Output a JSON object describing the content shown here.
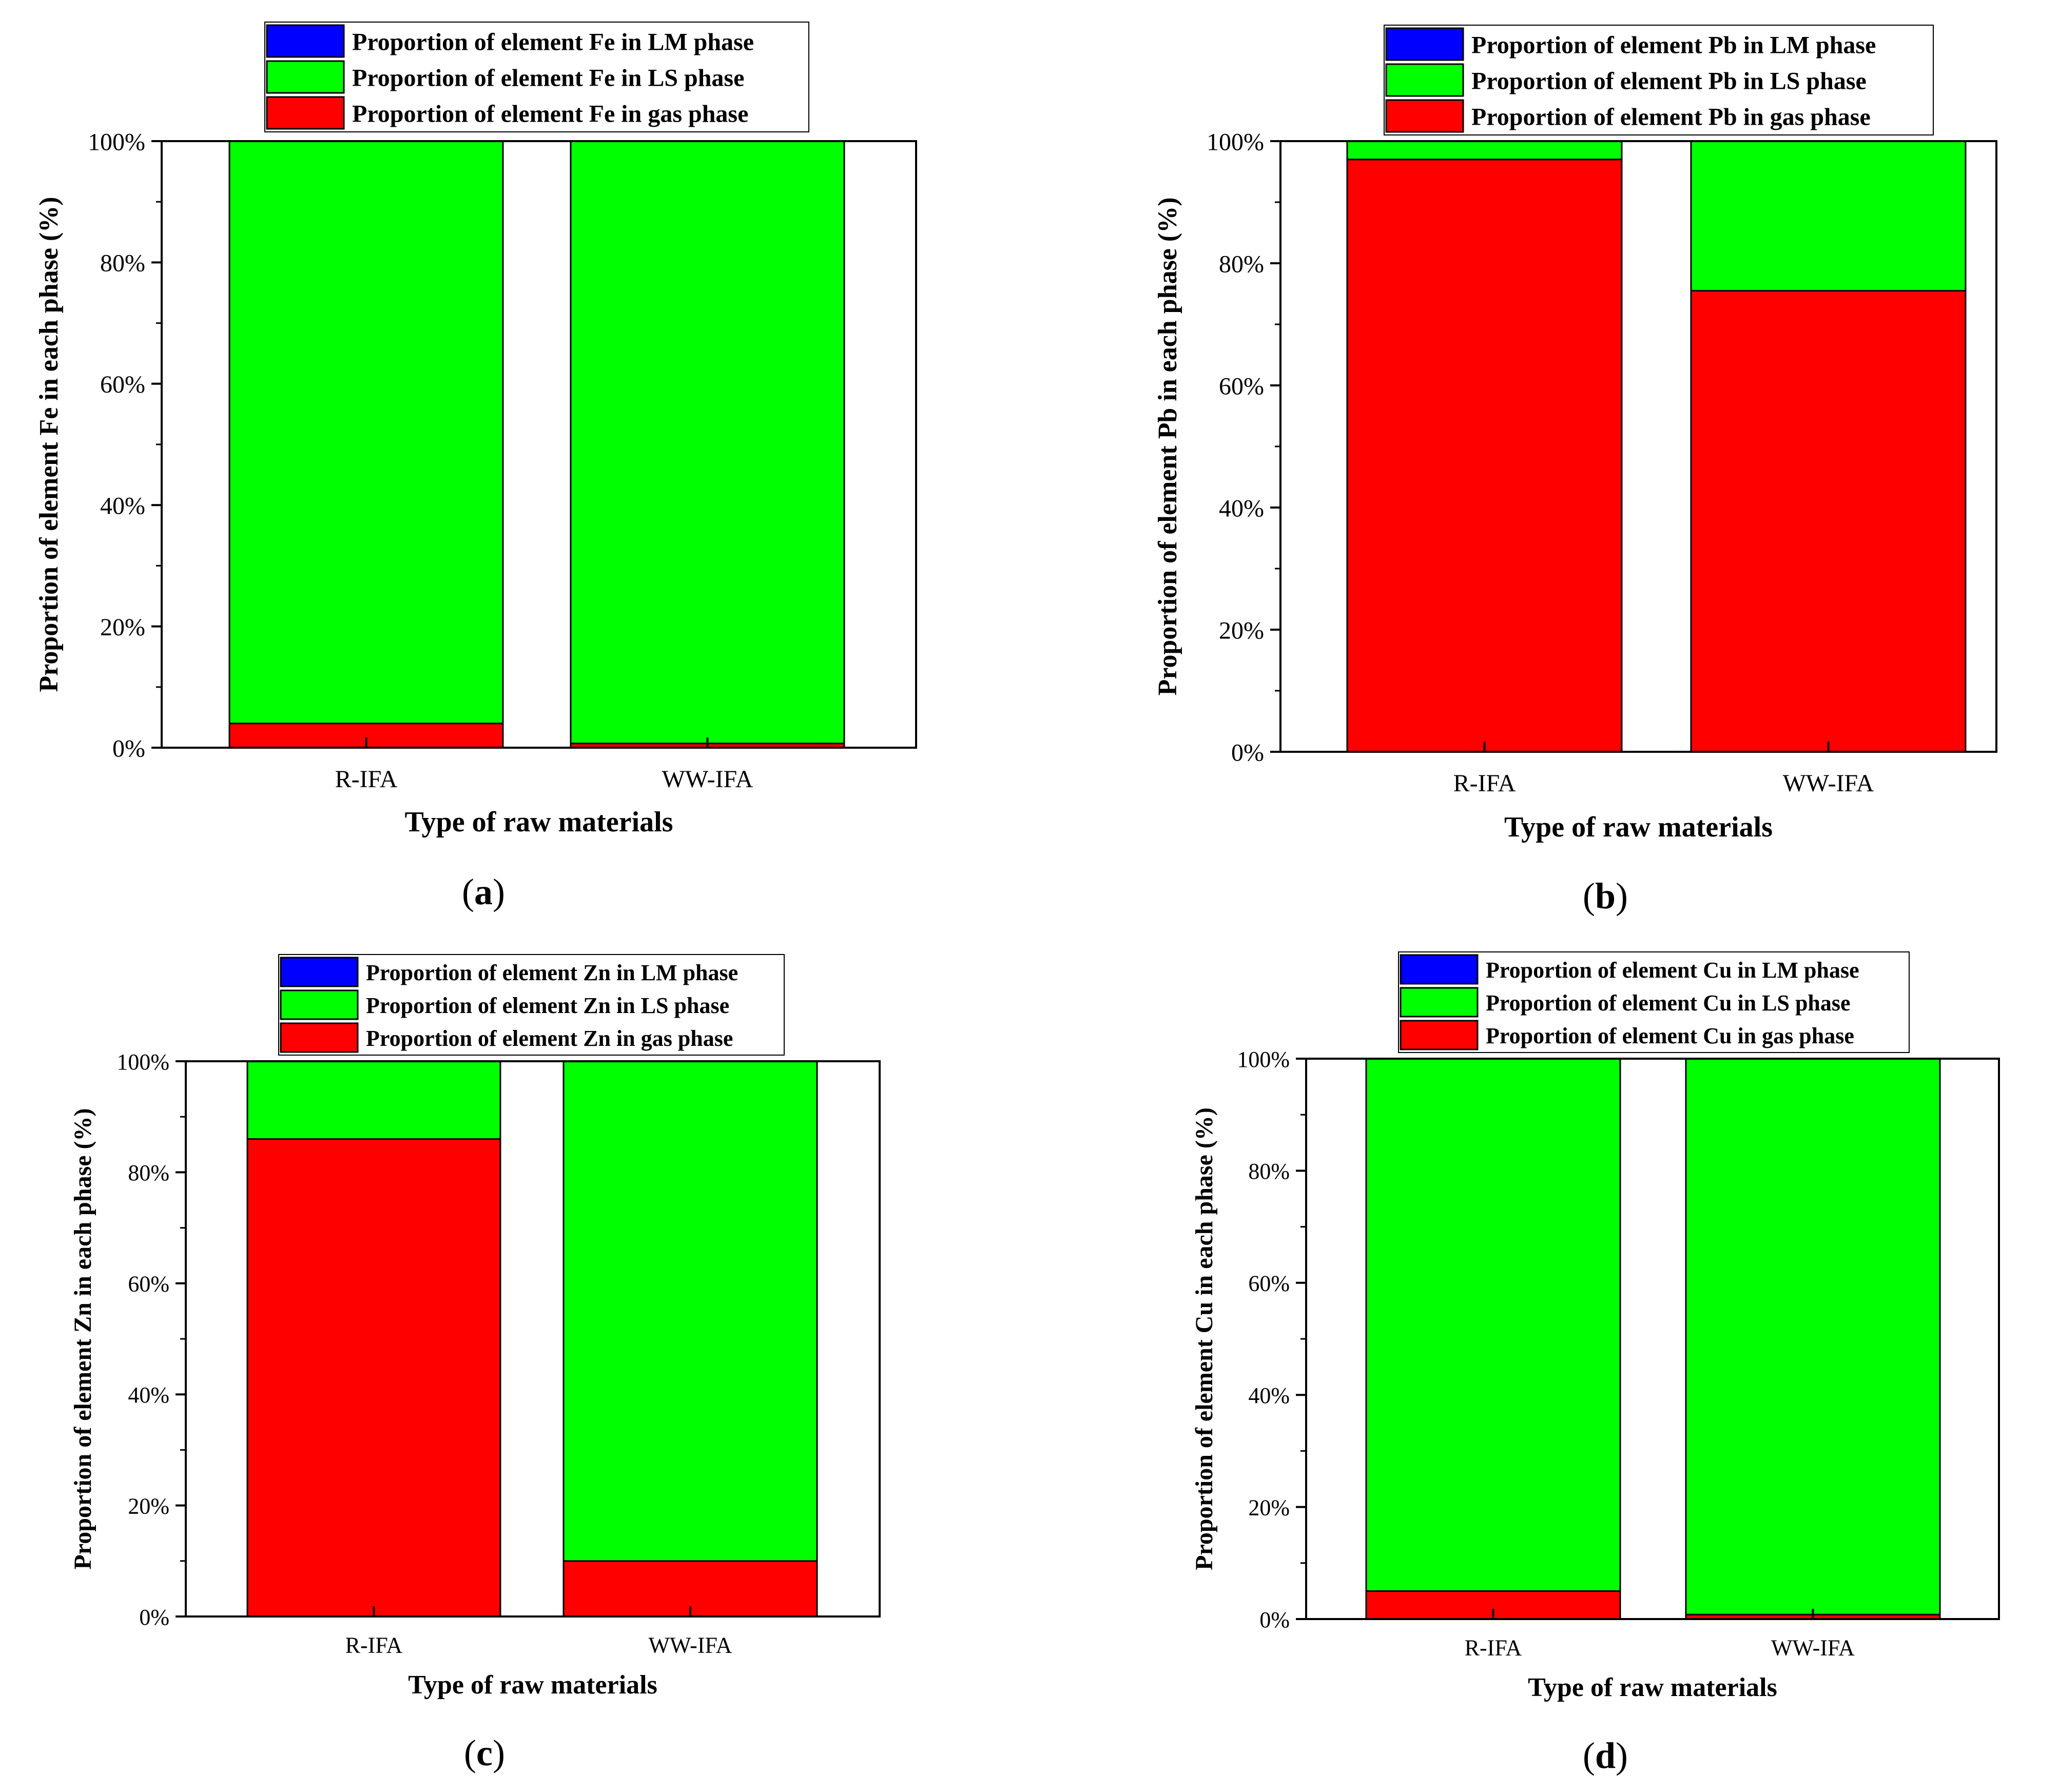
{
  "colors": {
    "lm": "#0000ff",
    "ls": "#00ff00",
    "gas": "#ff0000",
    "axis": "#000000",
    "background": "#ffffff"
  },
  "chart_data": [
    {
      "type": "bar",
      "stacked": true,
      "panel": "a",
      "panel_label": "a",
      "element": "Fe",
      "categories": [
        "R-IFA",
        "WW-IFA"
      ],
      "series": [
        {
          "key": "gas",
          "name": "Proportion of element Fe in gas phase",
          "values": [
            4,
            0.7
          ]
        },
        {
          "key": "ls",
          "name": "Proportion of element Fe in LS phase",
          "values": [
            96,
            99.3
          ]
        },
        {
          "key": "lm",
          "name": "Proportion of element Fe in LM phase",
          "values": [
            0,
            0
          ]
        }
      ],
      "legend_order": [
        "lm",
        "ls",
        "gas"
      ],
      "xlabel": "Type of raw materials",
      "ylabel": "Proportion of element Fe in each phase (%)",
      "ylim": [
        0,
        100
      ],
      "yticks": [
        "0%",
        "20%",
        "40%",
        "60%",
        "80%",
        "100%"
      ],
      "legend_position": "top-center"
    },
    {
      "type": "bar",
      "stacked": true,
      "panel": "b",
      "panel_label": "b",
      "element": "Pb",
      "categories": [
        "R-IFA",
        "WW-IFA"
      ],
      "series": [
        {
          "key": "gas",
          "name": "Proportion of element Pb in gas phase",
          "values": [
            97,
            75.5
          ]
        },
        {
          "key": "ls",
          "name": "Proportion of element Pb in LS phase",
          "values": [
            3,
            24.5
          ]
        },
        {
          "key": "lm",
          "name": "Proportion of element Pb in LM phase",
          "values": [
            0,
            0
          ]
        }
      ],
      "legend_order": [
        "lm",
        "ls",
        "gas"
      ],
      "xlabel": "Type of raw materials",
      "ylabel": "Proportion of element Pb in each phase (%)",
      "ylim": [
        0,
        100
      ],
      "yticks": [
        "0%",
        "20%",
        "40%",
        "60%",
        "80%",
        "100%"
      ],
      "legend_position": "top-center"
    },
    {
      "type": "bar",
      "stacked": true,
      "panel": "c",
      "panel_label": "c",
      "element": "Zn",
      "categories": [
        "R-IFA",
        "WW-IFA"
      ],
      "series": [
        {
          "key": "gas",
          "name": "Proportion of element Zn in gas phase",
          "values": [
            86,
            10
          ]
        },
        {
          "key": "ls",
          "name": "Proportion of element Zn in LS phase",
          "values": [
            14,
            90
          ]
        },
        {
          "key": "lm",
          "name": "Proportion of element Zn in LM phase",
          "values": [
            0,
            0
          ]
        }
      ],
      "legend_order": [
        "lm",
        "ls",
        "gas"
      ],
      "xlabel": "Type of raw materials",
      "ylabel": "Proportion of element Zn in each phase (%)",
      "ylim": [
        0,
        100
      ],
      "yticks": [
        "0%",
        "20%",
        "40%",
        "60%",
        "80%",
        "100%"
      ],
      "legend_position": "top-center"
    },
    {
      "type": "bar",
      "stacked": true,
      "panel": "d",
      "panel_label": "d",
      "element": "Cu",
      "categories": [
        "R-IFA",
        "WW-IFA"
      ],
      "series": [
        {
          "key": "gas",
          "name": "Proportion of element Cu in gas phase",
          "values": [
            5,
            0.8
          ]
        },
        {
          "key": "ls",
          "name": "Proportion of element Cu in LS phase",
          "values": [
            95,
            99.2
          ]
        },
        {
          "key": "lm",
          "name": "Proportion of element Cu in LM phase",
          "values": [
            0,
            0
          ]
        }
      ],
      "legend_order": [
        "lm",
        "ls",
        "gas"
      ],
      "xlabel": "Type of raw materials",
      "ylabel": "Proportion of element Cu in each phase (%)",
      "ylim": [
        0,
        100
      ],
      "yticks": [
        "0%",
        "20%",
        "40%",
        "60%",
        "80%",
        "100%"
      ],
      "legend_position": "top-center"
    }
  ]
}
